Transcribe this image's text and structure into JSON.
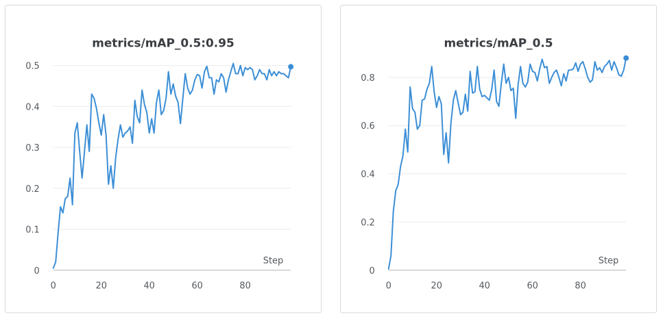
{
  "theme": {
    "line_color": "#3b8ed6",
    "grid_color": "#ececee",
    "text_color": "#55595e",
    "border_color": "#d7d9dc"
  },
  "chart_data": [
    {
      "type": "line",
      "title": "metrics/mAP_0.5:0.95",
      "xlabel": "Step",
      "ylabel": "",
      "xlim": [
        0,
        99
      ],
      "ylim": [
        0,
        0.53
      ],
      "xticks": [
        0,
        20,
        40,
        60,
        80
      ],
      "xtick_labels": [
        "0",
        "20",
        "40",
        "60",
        "80"
      ],
      "yticks": [
        0,
        0.1,
        0.2,
        0.3,
        0.4,
        0.5
      ],
      "ytick_labels": [
        "0",
        "0.1",
        "0.2",
        "0.3",
        "0.4",
        "0.5"
      ],
      "grid": true,
      "series": [
        {
          "x": [
            0,
            1,
            2,
            3,
            4,
            5,
            6,
            7,
            8,
            9,
            10,
            11,
            12,
            13,
            14,
            15,
            16,
            17,
            18,
            19,
            20,
            21,
            22,
            23,
            24,
            25,
            26,
            27,
            28,
            29,
            30,
            31,
            32,
            33,
            34,
            35,
            36,
            37,
            38,
            39,
            40,
            41,
            42,
            43,
            44,
            45,
            46,
            47,
            48,
            49,
            50,
            51,
            52,
            53,
            54,
            55,
            56,
            57,
            58,
            59,
            60,
            61,
            62,
            63,
            64,
            65,
            66,
            67,
            68,
            69,
            70,
            71,
            72,
            73,
            74,
            75,
            76,
            77,
            78,
            79,
            80,
            81,
            82,
            83,
            84,
            85,
            86,
            87,
            88,
            89,
            90,
            91,
            92,
            93,
            94,
            95,
            96,
            97,
            98,
            99
          ],
          "y": [
            0.005,
            0.02,
            0.09,
            0.155,
            0.14,
            0.175,
            0.18,
            0.225,
            0.16,
            0.335,
            0.36,
            0.29,
            0.225,
            0.29,
            0.355,
            0.29,
            0.43,
            0.42,
            0.395,
            0.36,
            0.33,
            0.38,
            0.33,
            0.21,
            0.255,
            0.2,
            0.275,
            0.32,
            0.355,
            0.325,
            0.335,
            0.34,
            0.35,
            0.31,
            0.415,
            0.375,
            0.36,
            0.44,
            0.405,
            0.385,
            0.335,
            0.37,
            0.335,
            0.41,
            0.44,
            0.38,
            0.39,
            0.42,
            0.485,
            0.43,
            0.455,
            0.425,
            0.41,
            0.358,
            0.42,
            0.48,
            0.445,
            0.43,
            0.44,
            0.465,
            0.478,
            0.475,
            0.445,
            0.485,
            0.498,
            0.47,
            0.47,
            0.43,
            0.465,
            0.46,
            0.48,
            0.47,
            0.435,
            0.465,
            0.485,
            0.505,
            0.48,
            0.48,
            0.5,
            0.475,
            0.495,
            0.49,
            0.495,
            0.49,
            0.465,
            0.475,
            0.49,
            0.48,
            0.48,
            0.465,
            0.49,
            0.475,
            0.485,
            0.475,
            0.485,
            0.48,
            0.48,
            0.475,
            0.47,
            0.497
          ]
        }
      ]
    },
    {
      "type": "line",
      "title": "metrics/mAP_0.5",
      "xlabel": "Step",
      "ylabel": "",
      "xlim": [
        0,
        99
      ],
      "ylim": [
        0,
        0.9
      ],
      "xticks": [
        0,
        20,
        40,
        60,
        80
      ],
      "xtick_labels": [
        "0",
        "20",
        "40",
        "60",
        "80"
      ],
      "yticks": [
        0,
        0.2,
        0.4,
        0.6,
        0.8
      ],
      "ytick_labels": [
        "0",
        "0.2",
        "0.4",
        "0.6",
        "0.8"
      ],
      "grid": true,
      "series": [
        {
          "x": [
            0,
            1,
            2,
            3,
            4,
            5,
            6,
            7,
            8,
            9,
            10,
            11,
            12,
            13,
            14,
            15,
            16,
            17,
            18,
            19,
            20,
            21,
            22,
            23,
            24,
            25,
            26,
            27,
            28,
            29,
            30,
            31,
            32,
            33,
            34,
            35,
            36,
            37,
            38,
            39,
            40,
            41,
            42,
            43,
            44,
            45,
            46,
            47,
            48,
            49,
            50,
            51,
            52,
            53,
            54,
            55,
            56,
            57,
            58,
            59,
            60,
            61,
            62,
            63,
            64,
            65,
            66,
            67,
            68,
            69,
            70,
            71,
            72,
            73,
            74,
            75,
            76,
            77,
            78,
            79,
            80,
            81,
            82,
            83,
            84,
            85,
            86,
            87,
            88,
            89,
            90,
            91,
            92,
            93,
            94,
            95,
            96,
            97,
            98,
            99
          ],
          "y": [
            0.005,
            0.06,
            0.245,
            0.33,
            0.355,
            0.43,
            0.475,
            0.585,
            0.49,
            0.76,
            0.67,
            0.655,
            0.585,
            0.6,
            0.705,
            0.71,
            0.75,
            0.775,
            0.845,
            0.74,
            0.675,
            0.72,
            0.69,
            0.48,
            0.57,
            0.445,
            0.61,
            0.705,
            0.745,
            0.695,
            0.645,
            0.655,
            0.73,
            0.66,
            0.825,
            0.735,
            0.74,
            0.845,
            0.75,
            0.72,
            0.725,
            0.715,
            0.705,
            0.75,
            0.83,
            0.7,
            0.68,
            0.775,
            0.855,
            0.775,
            0.8,
            0.745,
            0.755,
            0.63,
            0.77,
            0.845,
            0.775,
            0.76,
            0.78,
            0.855,
            0.825,
            0.82,
            0.785,
            0.835,
            0.875,
            0.84,
            0.845,
            0.775,
            0.8,
            0.82,
            0.83,
            0.8,
            0.765,
            0.815,
            0.785,
            0.83,
            0.83,
            0.835,
            0.86,
            0.825,
            0.855,
            0.865,
            0.835,
            0.8,
            0.78,
            0.79,
            0.865,
            0.83,
            0.84,
            0.82,
            0.845,
            0.855,
            0.87,
            0.83,
            0.865,
            0.84,
            0.81,
            0.805,
            0.83,
            0.88
          ]
        }
      ]
    }
  ]
}
